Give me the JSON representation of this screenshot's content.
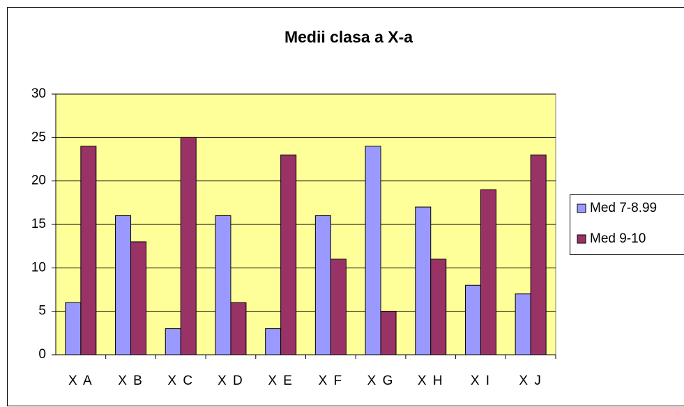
{
  "chart_data": {
    "type": "bar",
    "title": "Medii clasa a X-a",
    "categories": [
      "X A",
      "X B",
      "X C",
      "X D",
      "X E",
      "X F",
      "X G",
      "X H",
      "X I",
      "X J"
    ],
    "series": [
      {
        "name": "Med 7-8.99",
        "color": "#9999ff",
        "values": [
          6,
          16,
          3,
          16,
          3,
          16,
          24,
          17,
          8,
          7
        ]
      },
      {
        "name": "Med 9-10",
        "color": "#993366",
        "values": [
          24,
          13,
          25,
          6,
          23,
          11,
          5,
          11,
          19,
          23
        ]
      }
    ],
    "ylim": [
      0,
      30
    ],
    "yticks": [
      0,
      5,
      10,
      15,
      20,
      25,
      30
    ],
    "grid": true,
    "legend": "right"
  }
}
